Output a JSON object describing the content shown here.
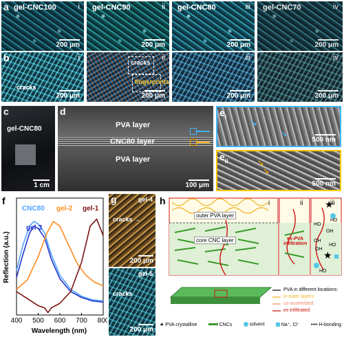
{
  "row_a": {
    "letter": "a",
    "panels": [
      {
        "name": "gel-CNC100",
        "roman": "i",
        "scale": "200 μm"
      },
      {
        "name": "gel-CNC90",
        "roman": "ii",
        "scale": "200 μm"
      },
      {
        "name": "gel-CNC80",
        "roman": "iii",
        "scale": "200 μm"
      },
      {
        "name": "gel-CNC70",
        "roman": "iv",
        "scale": "200 μm"
      }
    ]
  },
  "row_b": {
    "letter": "b",
    "panels": [
      {
        "roman": "i",
        "scale": "200 μm",
        "annotation": "cracks"
      },
      {
        "roman": "ii",
        "scale": "200 μm",
        "annotation": "cracks",
        "annotation2": "fingerprints"
      },
      {
        "roman": "iii",
        "scale": "200 μm"
      },
      {
        "roman": "iv",
        "scale": "200 μm"
      }
    ]
  },
  "panel_c": {
    "letter": "c",
    "name": "gel-CNC80",
    "scale": "1 cm"
  },
  "panel_d": {
    "letter": "d",
    "layer_top": "PVA layer",
    "layer_mid": "CNC80 layer",
    "layer_bot": "PVA layer",
    "scale": "100 μm"
  },
  "panel_e": {
    "letter_i": "e",
    "sub_i": "i",
    "letter_ii": "e",
    "sub_ii": "ii",
    "scale_i": "500 nm",
    "scale_ii": "500 nm"
  },
  "panel_f": {
    "letter": "f",
    "ylabel": "Reflection (a.u.)",
    "xlabel": "Wavelength (nm)",
    "xticks": [
      "400",
      "500",
      "600",
      "700",
      "800"
    ],
    "labels": [
      "CNC80",
      "gel-2",
      "gel-1",
      "gel-3"
    ],
    "colors": {
      "CNC80": "#4fa3ff",
      "gel-2": "#ff8a1c",
      "gel-1": "#7a1010",
      "gel-3": "#2233cc"
    }
  },
  "chart_data": {
    "type": "line",
    "xlabel": "Wavelength (nm)",
    "ylabel": "Reflection (a.u.)",
    "xlim": [
      400,
      800
    ],
    "ylim": [
      0,
      1
    ],
    "series": [
      {
        "name": "CNC80",
        "x": [
          400,
          430,
          460,
          480,
          500,
          530,
          560,
          600,
          650,
          700,
          750,
          800
        ],
        "y": [
          0.38,
          0.6,
          0.76,
          0.8,
          0.78,
          0.7,
          0.52,
          0.34,
          0.22,
          0.16,
          0.13,
          0.12
        ]
      },
      {
        "name": "gel-3",
        "x": [
          400,
          430,
          460,
          480,
          500,
          530,
          560,
          600,
          650,
          700,
          750,
          800
        ],
        "y": [
          0.32,
          0.52,
          0.7,
          0.76,
          0.74,
          0.66,
          0.48,
          0.31,
          0.2,
          0.15,
          0.12,
          0.11
        ]
      },
      {
        "name": "gel-2",
        "x": [
          400,
          450,
          500,
          540,
          570,
          600,
          640,
          680,
          720,
          760,
          800
        ],
        "y": [
          0.22,
          0.3,
          0.5,
          0.7,
          0.8,
          0.76,
          0.6,
          0.44,
          0.34,
          0.28,
          0.25
        ]
      },
      {
        "name": "gel-1",
        "x": [
          400,
          450,
          500,
          530,
          545,
          560,
          600,
          650,
          700,
          740,
          770,
          800
        ],
        "y": [
          0.2,
          0.14,
          0.08,
          0.06,
          0.02,
          0.06,
          0.1,
          0.2,
          0.45,
          0.76,
          0.82,
          0.68
        ]
      }
    ]
  },
  "panel_g": {
    "letter": "g",
    "name_top": "gel-4",
    "cracks_top": "cracks",
    "scale_top": "200 μm",
    "name_bot": "gel-5",
    "cracks_bot": "cracks",
    "scale_bot": "200 μm"
  },
  "panel_h": {
    "letter": "h",
    "outer_label": "outer PVA layer",
    "core_label": "core CNC layer",
    "infiltration": "ex-PVA\ninfiltration",
    "roman_i": "i",
    "roman_ii": "ii",
    "roman_iii": "iii",
    "ho1": "HO",
    "oh1": "OH",
    "oh2": "OH",
    "ho2": "HO",
    "oh3": "OH",
    "ho3": "HO",
    "ho4": "HO",
    "legend": {
      "title": "PVA in different locations:",
      "items": [
        "in outer layers",
        "co-assembled",
        "ex-infiltrated"
      ],
      "item_colors": [
        "#f0b020",
        "#f08c6c",
        "#cc1111"
      ],
      "key_line_color": "#000000"
    },
    "bottom_legend": [
      "PVA crystalline",
      "CNCs",
      "solvent",
      "Na⁺, Cl⁻",
      "H-bonding"
    ]
  }
}
